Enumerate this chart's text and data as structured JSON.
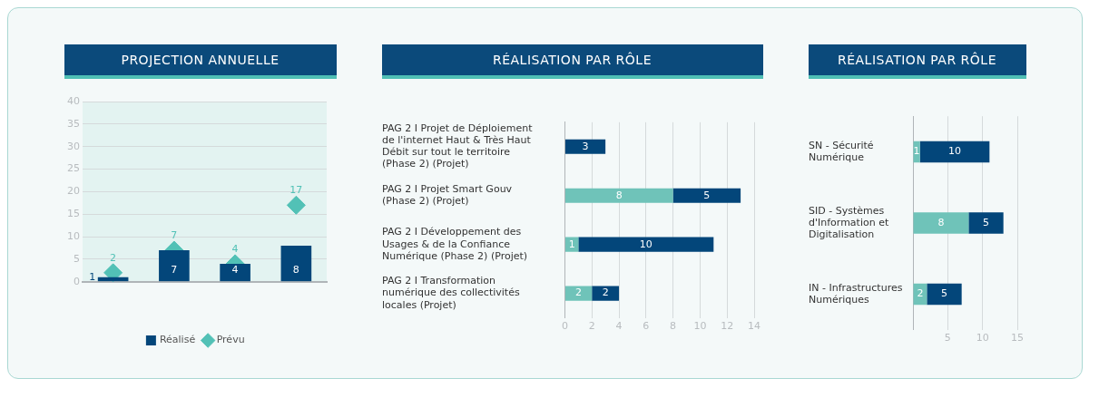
{
  "chart_data": [
    {
      "type": "bar",
      "title": "PROJECTION ANNUELLE",
      "categories": [
        null,
        null,
        null,
        null
      ],
      "ylim": [
        0,
        40
      ],
      "yticks": [
        0,
        5,
        10,
        15,
        20,
        25,
        30,
        35,
        40
      ],
      "grid": "y",
      "legend": "bottom",
      "data_labels": true,
      "series": [
        {
          "name": "Réalisé",
          "color": "#03467a",
          "values": [
            1,
            7,
            4,
            8
          ]
        },
        {
          "name": "Prévu",
          "type": "scatter",
          "marker": "diamond",
          "color": "#52c1b6",
          "values": [
            2,
            7,
            4,
            17
          ]
        }
      ]
    },
    {
      "type": "bar",
      "title": "RÉALISATION PAR RÔLE",
      "orientation": "horizontal",
      "stacked": true,
      "categories": [
        "PAG 2 I Projet de Déploiement de l'internet Haut & Très Haut Débit sur tout le territoire (Phase 2) (Projet)",
        "PAG 2 I Projet Smart Gouv (Phase 2) (Projet)",
        "PAG 2 I Développement des Usages & de la Confiance Numérique (Phase 2) (Projet)",
        "PAG 2 I Transformation numérique des collectivités locales (Projet)"
      ],
      "xlim": [
        0,
        14
      ],
      "xticks": [
        0,
        2,
        4,
        6,
        8,
        10,
        12,
        14
      ],
      "grid": "x",
      "data_labels": true,
      "series": [
        {
          "color": "#6fc3b9",
          "values": [
            null,
            8,
            1,
            2
          ]
        },
        {
          "color": "#03467a",
          "values": [
            3,
            5,
            10,
            2
          ]
        }
      ]
    },
    {
      "type": "bar",
      "title": "RÉALISATION PAR RÔLE",
      "orientation": "horizontal",
      "stacked": true,
      "categories": [
        "SN - Sécurité Numérique",
        "SID - Systèmes d'Information et Digitalisation",
        "IN - Infrastructures Numériques"
      ],
      "xlim": [
        0,
        15
      ],
      "xticks": [
        {
          "value": 0,
          "label": null
        },
        5,
        10,
        15
      ],
      "grid": "x",
      "data_labels": true,
      "series": [
        {
          "color": "#6fc3b9",
          "values": [
            1,
            8,
            2
          ]
        },
        {
          "color": "#03467a",
          "values": [
            10,
            5,
            5
          ]
        }
      ]
    }
  ]
}
